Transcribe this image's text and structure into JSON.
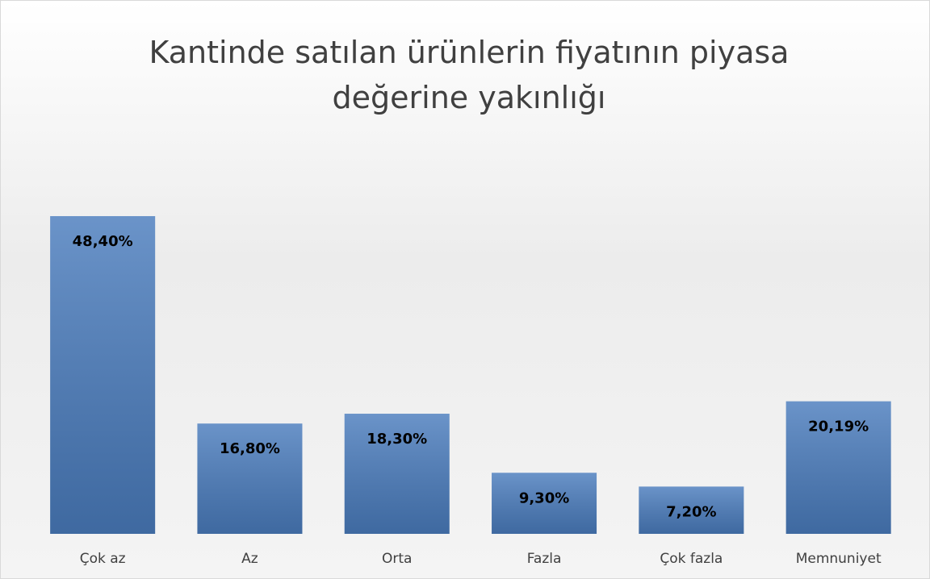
{
  "chart_data": {
    "type": "bar",
    "title": "Kantinde satılan ürünlerin fiyatının piyasa değerine yakınlığı",
    "categories": [
      "Çok az",
      "Az",
      "Orta",
      "Fazla",
      "Çok fazla",
      "Memnuniyet"
    ],
    "values": [
      48.4,
      16.8,
      18.3,
      9.3,
      7.2,
      20.19
    ],
    "value_labels": [
      "48,40%",
      "16,80%",
      "18,30%",
      "9,30%",
      "7,20%",
      "20,19%"
    ],
    "color": "#4a7cbd"
  }
}
